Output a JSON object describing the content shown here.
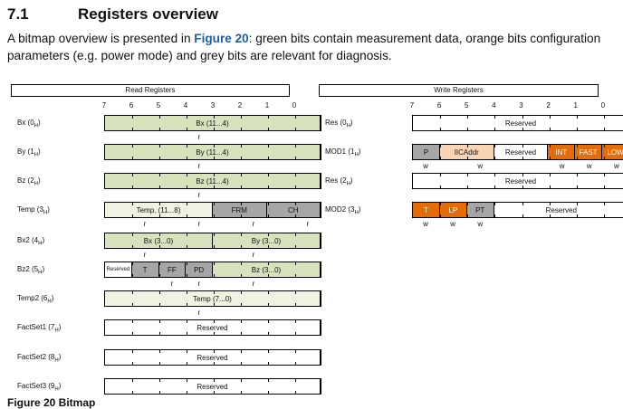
{
  "section": {
    "number": "7.1",
    "title": "Registers overview"
  },
  "intro": {
    "before": "A bitmap overview is presented in ",
    "link": "Figure 20",
    "after": ": green bits contain measurement data, orange bits configuration parameters (e.g. power mode) and grey bits are relevant for diagnosis."
  },
  "read_panel": {
    "title": "Read Registers",
    "bit_numbers": [
      "7",
      "6",
      "5",
      "4",
      "3",
      "2",
      "1",
      "0"
    ],
    "registers": [
      {
        "name": "Bx (0",
        "sub": "H",
        "close": ")",
        "fields": [
          {
            "text": "Bx (11...4)",
            "cls": "g",
            "span": 8
          }
        ],
        "below": [
          {
            "t": "r",
            "bit": 4
          }
        ]
      },
      {
        "name": "By (1",
        "sub": "H",
        "close": ")",
        "fields": [
          {
            "text": "By (11...4)",
            "cls": "g",
            "span": 8
          }
        ],
        "below": [
          {
            "t": "r",
            "bit": 4
          }
        ]
      },
      {
        "name": "Bz (2",
        "sub": "H",
        "close": ")",
        "fields": [
          {
            "text": "Bz (11...4)",
            "cls": "g",
            "span": 8
          }
        ],
        "below": [
          {
            "t": "r",
            "bit": 4
          }
        ]
      },
      {
        "name": "Temp (3",
        "sub": "H",
        "close": ")",
        "fields": [
          {
            "text": "Temp. (11...8)",
            "cls": "lg",
            "span": 4
          },
          {
            "text": "FRM",
            "cls": "gr",
            "span": 2
          },
          {
            "text": "CH",
            "cls": "gr",
            "span": 2
          }
        ],
        "below": [
          {
            "t": "r",
            "bit": 6
          },
          {
            "t": "r",
            "bit": 4
          },
          {
            "t": "r",
            "bit": 2
          },
          {
            "t": "r",
            "bit": 0
          }
        ]
      },
      {
        "name": "Bx2 (4",
        "sub": "H",
        "close": ")",
        "fields": [
          {
            "text": "Bx (3...0)",
            "cls": "g",
            "span": 4
          },
          {
            "text": "By (3...0)",
            "cls": "g",
            "span": 4
          }
        ],
        "below": [
          {
            "t": "r",
            "bit": 6
          },
          {
            "t": "r",
            "bit": 2
          }
        ]
      },
      {
        "name": "Bz2 (5",
        "sub": "H",
        "close": ")",
        "fields": [
          {
            "text": "Reserved",
            "cls": "w",
            "span": 1,
            "small": true
          },
          {
            "text": "T",
            "cls": "gr",
            "span": 1
          },
          {
            "text": "FF",
            "cls": "gr",
            "span": 1
          },
          {
            "text": "PD",
            "cls": "gr",
            "span": 1
          },
          {
            "text": "Bz (3...0)",
            "cls": "g",
            "span": 4
          }
        ],
        "below": [
          {
            "t": "r",
            "bit": 5
          },
          {
            "t": "r",
            "bit": 4
          },
          {
            "t": "r",
            "bit": 2
          }
        ]
      },
      {
        "name": "Temp2 (6",
        "sub": "H",
        "close": ")",
        "fields": [
          {
            "text": "Temp (7...0)",
            "cls": "lg",
            "span": 8
          }
        ],
        "below": [
          {
            "t": "r",
            "bit": 4
          }
        ]
      },
      {
        "name": "FactSet1 (7",
        "sub": "H",
        "close": ")",
        "fields": [
          {
            "text": "Reserved",
            "cls": "w",
            "span": 8
          }
        ],
        "below": []
      },
      {
        "name": "FactSet2 (8",
        "sub": "H",
        "close": ")",
        "fields": [
          {
            "text": "Reserved",
            "cls": "w",
            "span": 8
          }
        ],
        "below": []
      },
      {
        "name": "FactSet3 (9",
        "sub": "H",
        "close": ")",
        "fields": [
          {
            "text": "Reserved",
            "cls": "w",
            "span": 8
          }
        ],
        "below": []
      }
    ]
  },
  "write_panel": {
    "title": "Write Registers",
    "bit_numbers": [
      "7",
      "6",
      "5",
      "4",
      "3",
      "2",
      "1",
      "0"
    ],
    "registers": [
      {
        "name": "Res (0",
        "sub": "H",
        "close": ")",
        "fields": [
          {
            "text": "Reserved",
            "cls": "w",
            "span": 8
          }
        ],
        "below": []
      },
      {
        "name": "MOD1 (1",
        "sub": "H",
        "close": ")",
        "fields": [
          {
            "text": "P",
            "cls": "gr",
            "span": 1
          },
          {
            "text": "IICAddr",
            "cls": "lo",
            "span": 2
          },
          {
            "text": "Reserved",
            "cls": "w",
            "span": 2
          },
          {
            "text": "INT",
            "cls": "or",
            "span": 1
          },
          {
            "text": "FAST",
            "cls": "or",
            "span": 1
          },
          {
            "text": "LOW",
            "cls": "or",
            "span": 1
          }
        ],
        "below": [
          {
            "t": "w",
            "bit": 7
          },
          {
            "t": "w",
            "bit": 5
          },
          {
            "t": "w",
            "bit": 2
          },
          {
            "t": "w",
            "bit": 1
          },
          {
            "t": "w",
            "bit": 0
          }
        ]
      },
      {
        "name": "Res (2",
        "sub": "H",
        "close": ")",
        "fields": [
          {
            "text": "Reserved",
            "cls": "w",
            "span": 8
          }
        ],
        "below": []
      },
      {
        "name": "MOD2 (3",
        "sub": "H",
        "close": ")",
        "fields": [
          {
            "text": "T",
            "cls": "or",
            "span": 1
          },
          {
            "text": "LP",
            "cls": "or",
            "span": 1
          },
          {
            "text": "PT",
            "cls": "gr",
            "span": 1
          },
          {
            "text": "Reserved",
            "cls": "w",
            "span": 5
          }
        ],
        "below": [
          {
            "t": "w",
            "bit": 7
          },
          {
            "t": "w",
            "bit": 6
          },
          {
            "t": "w",
            "bit": 5
          }
        ]
      }
    ]
  },
  "caption": "Figure 20   Bitmap"
}
